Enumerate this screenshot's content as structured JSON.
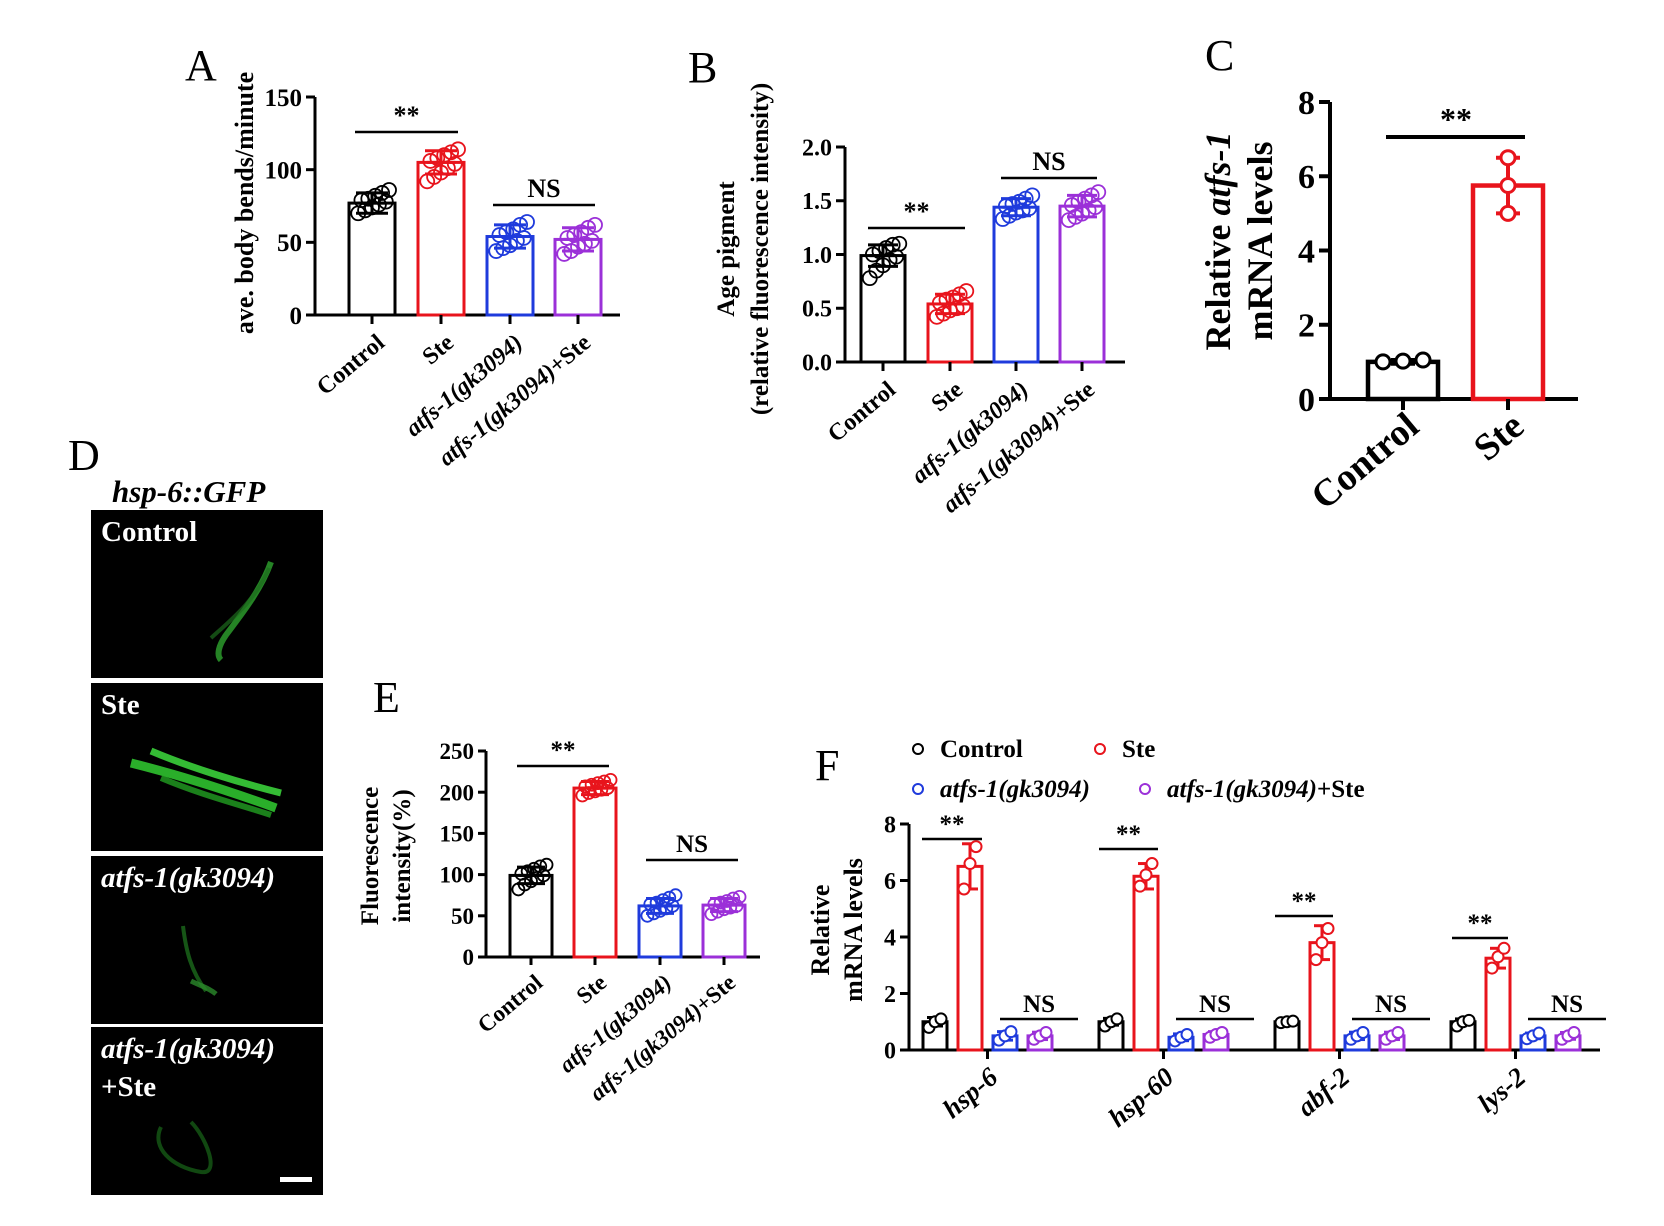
{
  "panels": {
    "A": "A",
    "B": "B",
    "C": "C",
    "D": "D",
    "E": "E",
    "F": "F"
  },
  "colors": {
    "control": "#000000",
    "ste": "#e8141c",
    "mutant": "#1f3bdc",
    "mutant_ste": "#9b30d8"
  },
  "panel_d": {
    "title": "hsp-6::GFP",
    "images": [
      {
        "label": "Control",
        "italic": false
      },
      {
        "label": "Ste",
        "italic": false
      },
      {
        "label": "atfs-1(gk3094)",
        "italic": true
      },
      {
        "label_line1": "atfs-1(gk3094)",
        "label_line2": "+Ste",
        "italic": true
      }
    ],
    "scale_bar": true
  },
  "chart_data": [
    {
      "panel": "A",
      "type": "bar",
      "ylabel": "ave. body bends/minute",
      "ylim": [
        0,
        150
      ],
      "yticks": [
        "0",
        "50",
        "100",
        "150"
      ],
      "categories": [
        "Control",
        "Ste",
        "atfs-1(gk3094)",
        "atfs-1(gk3094)+Ste"
      ],
      "values": [
        77,
        105,
        54,
        52
      ],
      "errors": [
        7,
        8,
        8,
        8
      ],
      "points": [
        [
          70,
          72,
          74,
          76,
          78,
          79,
          80,
          82,
          84,
          86
        ],
        [
          92,
          95,
          98,
          101,
          104,
          106,
          108,
          110,
          112,
          114
        ],
        [
          44,
          46,
          48,
          51,
          53,
          55,
          57,
          59,
          62,
          64
        ],
        [
          42,
          44,
          47,
          49,
          51,
          53,
          55,
          57,
          60,
          62
        ]
      ],
      "significance": [
        {
          "groups": [
            0,
            1
          ],
          "text": "**"
        },
        {
          "groups": [
            2,
            3
          ],
          "text": "NS"
        }
      ]
    },
    {
      "panel": "B",
      "type": "bar",
      "ylabel_line1": "Age pigment",
      "ylabel_line2": "(relative fluorescence intensity)",
      "ylim": [
        0,
        2.0
      ],
      "yticks": [
        "0.0",
        "0.5",
        "1.0",
        "1.5",
        "2.0"
      ],
      "categories": [
        "Control",
        "Ste",
        "atfs-1(gk3094)",
        "atfs-1(gk3094)+Ste"
      ],
      "values": [
        0.99,
        0.54,
        1.44,
        1.45
      ],
      "errors": [
        0.1,
        0.09,
        0.08,
        0.1
      ],
      "points": [
        [
          0.78,
          0.85,
          0.9,
          0.95,
          0.98,
          1.0,
          1.03,
          1.06,
          1.09,
          1.1
        ],
        [
          0.42,
          0.45,
          0.48,
          0.5,
          0.52,
          0.55,
          0.58,
          0.6,
          0.63,
          0.66
        ],
        [
          1.33,
          1.36,
          1.39,
          1.41,
          1.43,
          1.45,
          1.47,
          1.49,
          1.52,
          1.55
        ],
        [
          1.32,
          1.35,
          1.38,
          1.41,
          1.44,
          1.46,
          1.49,
          1.52,
          1.55,
          1.58
        ]
      ],
      "significance": [
        {
          "groups": [
            0,
            1
          ],
          "text": "**"
        },
        {
          "groups": [
            2,
            3
          ],
          "text": "NS"
        }
      ]
    },
    {
      "panel": "C",
      "type": "bar",
      "ylabel_line1_pre": "Relative ",
      "ylabel_line1_it": "atfs-1",
      "ylabel_line2": "mRNA  levels",
      "ylim": [
        0,
        8
      ],
      "yticks": [
        "0",
        "2",
        "4",
        "6",
        "8"
      ],
      "categories": [
        "Control",
        "Ste"
      ],
      "values": [
        1.0,
        5.75
      ],
      "errors": [
        0.05,
        0.75
      ],
      "points": [
        [
          1.0,
          1.02,
          1.05
        ],
        [
          5.0,
          5.75,
          6.5
        ]
      ],
      "significance": [
        {
          "groups": [
            0,
            1
          ],
          "text": "**"
        }
      ]
    },
    {
      "panel": "E",
      "type": "bar",
      "ylabel_line1": "Fluorescence",
      "ylabel_line2": "intensity(%)",
      "ylim": [
        0,
        250
      ],
      "yticks": [
        "0",
        "50",
        "100",
        "150",
        "200",
        "250"
      ],
      "categories": [
        "Control",
        "Ste",
        "atfs-1(gk3094)",
        "atfs-1(gk3094)+Ste"
      ],
      "values": [
        99,
        205,
        62,
        63
      ],
      "errors": [
        10,
        8,
        9,
        8
      ],
      "points": [
        [
          82,
          88,
          92,
          96,
          99,
          101,
          104,
          107,
          110,
          112
        ],
        [
          196,
          199,
          201,
          203,
          205,
          207,
          209,
          211,
          213,
          215
        ],
        [
          50,
          53,
          56,
          59,
          62,
          64,
          66,
          69,
          72,
          75
        ],
        [
          52,
          55,
          58,
          60,
          62,
          64,
          66,
          68,
          71,
          73
        ]
      ],
      "significance": [
        {
          "groups": [
            0,
            1
          ],
          "text": "**"
        },
        {
          "groups": [
            2,
            3
          ],
          "text": "NS"
        }
      ]
    },
    {
      "panel": "F",
      "type": "bar",
      "ylabel_line1": "Relative",
      "ylabel_line2": "mRNA  levels",
      "ylim": [
        0,
        8
      ],
      "yticks": [
        "0",
        "2",
        "4",
        "6",
        "8"
      ],
      "categories": [
        "hsp-6",
        "hsp-60",
        "abf-2",
        "lys-2"
      ],
      "legend": {
        "placement": "top",
        "entries": [
          {
            "text": "Control",
            "italic": false
          },
          {
            "text": "Ste",
            "italic": false
          },
          {
            "text": "atfs-1(gk3094)",
            "italic": true
          },
          {
            "text_it": "atfs-1(gk3094)",
            "text_rest": "+Ste",
            "italic": true
          }
        ]
      },
      "series": [
        {
          "name": "Control",
          "values": [
            1.0,
            1.0,
            1.0,
            1.0
          ],
          "errors": [
            0.15,
            0.12,
            0.05,
            0.1
          ],
          "points": [
            [
              0.8,
              1.0,
              1.1
            ],
            [
              0.85,
              1.0,
              1.1
            ],
            [
              0.97,
              1.0,
              1.02
            ],
            [
              0.85,
              1.0,
              1.05
            ]
          ]
        },
        {
          "name": "Ste",
          "values": [
            6.5,
            6.15,
            3.8,
            3.25
          ],
          "errors": [
            0.8,
            0.45,
            0.6,
            0.35
          ],
          "points": [
            [
              5.7,
              6.6,
              7.2
            ],
            [
              5.8,
              6.2,
              6.6
            ],
            [
              3.2,
              3.8,
              4.3
            ],
            [
              2.9,
              3.3,
              3.6
            ]
          ]
        },
        {
          "name": "atfs-1(gk3094)",
          "values": [
            0.5,
            0.45,
            0.5,
            0.5
          ],
          "errors": [
            0.15,
            0.12,
            0.13,
            0.1
          ],
          "points": [
            [
              0.35,
              0.5,
              0.65
            ],
            [
              0.32,
              0.45,
              0.55
            ],
            [
              0.38,
              0.5,
              0.62
            ],
            [
              0.4,
              0.5,
              0.6
            ]
          ]
        },
        {
          "name": "atfs-1(gk3094)+Ste",
          "values": [
            0.5,
            0.55,
            0.5,
            0.5
          ],
          "errors": [
            0.13,
            0.1,
            0.13,
            0.12
          ],
          "points": [
            [
              0.38,
              0.5,
              0.62
            ],
            [
              0.45,
              0.55,
              0.62
            ],
            [
              0.38,
              0.5,
              0.62
            ],
            [
              0.38,
              0.5,
              0.62
            ]
          ]
        }
      ],
      "significance": [
        {
          "category": 0,
          "text": "**"
        },
        {
          "category": 0,
          "text": "NS"
        },
        {
          "category": 1,
          "text": "**"
        },
        {
          "category": 1,
          "text": "NS"
        },
        {
          "category": 2,
          "text": "**"
        },
        {
          "category": 2,
          "text": "NS"
        },
        {
          "category": 3,
          "text": "**"
        },
        {
          "category": 3,
          "text": "NS"
        }
      ]
    }
  ]
}
